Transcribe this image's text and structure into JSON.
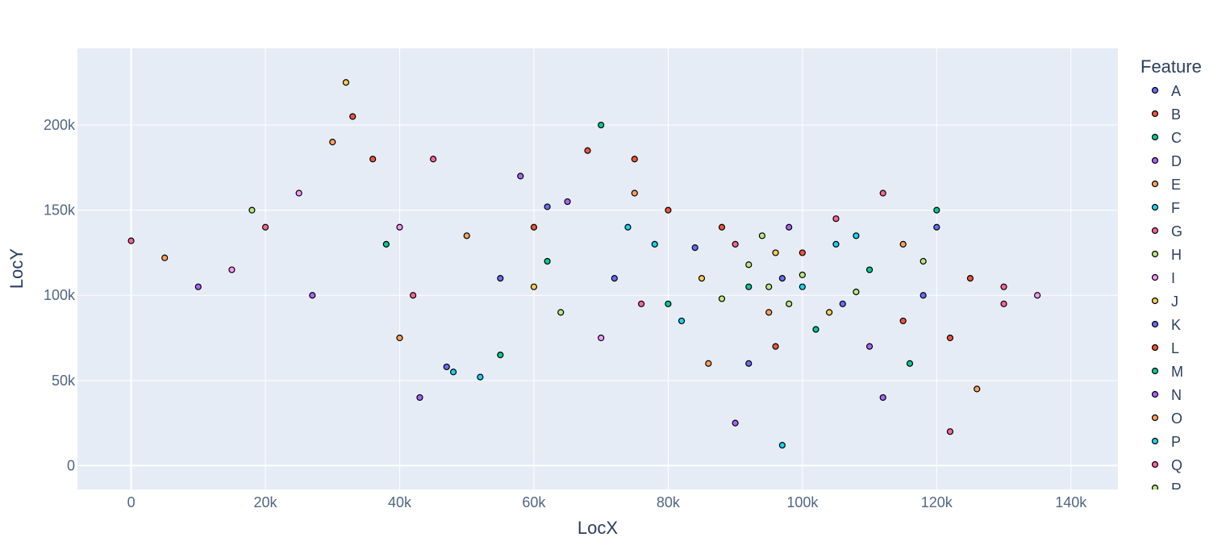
{
  "chart_data": {
    "type": "scatter",
    "title": "",
    "xlabel": "LocX",
    "ylabel": "LocY",
    "xlim": [
      -8000,
      147000
    ],
    "ylim": [
      -14000,
      245000
    ],
    "x_ticks": [
      0,
      20000,
      40000,
      60000,
      80000,
      100000,
      120000,
      140000
    ],
    "x_tick_labels": [
      "0",
      "20k",
      "40k",
      "60k",
      "80k",
      "100k",
      "120k",
      "140k"
    ],
    "y_ticks": [
      0,
      50000,
      100000,
      150000,
      200000
    ],
    "y_tick_labels": [
      "0",
      "50k",
      "100k",
      "150k",
      "200k"
    ],
    "grid": true,
    "legend": {
      "title": "Feature",
      "placement": "right",
      "entries": [
        "A",
        "B",
        "C",
        "D",
        "E",
        "F",
        "G",
        "H",
        "I",
        "J",
        "K",
        "L",
        "M",
        "N",
        "O",
        "P",
        "Q",
        "R"
      ]
    },
    "series": [
      {
        "name": "A",
        "color": "#636efa",
        "points": [
          [
            97000,
            110000
          ],
          [
            84000,
            128000
          ],
          [
            62000,
            152000
          ],
          [
            106000,
            95000
          ],
          [
            47000,
            58000
          ],
          [
            120000,
            140000
          ]
        ]
      },
      {
        "name": "B",
        "color": "#ef553b",
        "points": [
          [
            33000,
            205000
          ],
          [
            75000,
            180000
          ],
          [
            100000,
            125000
          ],
          [
            88000,
            140000
          ],
          [
            115000,
            85000
          ],
          [
            125000,
            110000
          ],
          [
            60000,
            140000
          ]
        ]
      },
      {
        "name": "C",
        "color": "#00cc96",
        "points": [
          [
            70000,
            200000
          ],
          [
            92000,
            105000
          ],
          [
            110000,
            115000
          ],
          [
            55000,
            65000
          ],
          [
            120000,
            150000
          ],
          [
            80000,
            95000
          ]
        ]
      },
      {
        "name": "D",
        "color": "#ab63fa",
        "points": [
          [
            10000,
            105000
          ],
          [
            43000,
            40000
          ],
          [
            98000,
            140000
          ],
          [
            65000,
            155000
          ],
          [
            110000,
            70000
          ]
        ]
      },
      {
        "name": "E",
        "color": "#ffa15a",
        "points": [
          [
            30000,
            190000
          ],
          [
            40000,
            75000
          ],
          [
            75000,
            160000
          ],
          [
            95000,
            90000
          ],
          [
            115000,
            130000
          ]
        ]
      },
      {
        "name": "F",
        "color": "#19d3f3",
        "points": [
          [
            48000,
            55000
          ],
          [
            78000,
            130000
          ],
          [
            100000,
            105000
          ],
          [
            82000,
            85000
          ],
          [
            105000,
            130000
          ]
        ]
      },
      {
        "name": "G",
        "color": "#ff6692",
        "points": [
          [
            20000,
            140000
          ],
          [
            45000,
            180000
          ],
          [
            90000,
            130000
          ],
          [
            105000,
            145000
          ],
          [
            112000,
            160000
          ],
          [
            130000,
            95000
          ]
        ]
      },
      {
        "name": "H",
        "color": "#b6e880",
        "points": [
          [
            95000,
            105000
          ],
          [
            100000,
            112000
          ],
          [
            88000,
            98000
          ],
          [
            108000,
            102000
          ],
          [
            92000,
            118000
          ],
          [
            98000,
            95000
          ]
        ]
      },
      {
        "name": "I",
        "color": "#ff97ff",
        "points": [
          [
            15000,
            115000
          ],
          [
            25000,
            160000
          ],
          [
            40000,
            140000
          ],
          [
            70000,
            75000
          ],
          [
            135000,
            100000
          ]
        ]
      },
      {
        "name": "J",
        "color": "#fecb52",
        "points": [
          [
            32000,
            225000
          ],
          [
            60000,
            105000
          ],
          [
            85000,
            110000
          ],
          [
            96000,
            125000
          ],
          [
            104000,
            90000
          ]
        ]
      },
      {
        "name": "K",
        "color": "#636efa",
        "points": [
          [
            55000,
            110000
          ],
          [
            92000,
            60000
          ],
          [
            118000,
            100000
          ],
          [
            72000,
            110000
          ]
        ]
      },
      {
        "name": "L",
        "color": "#ef553b",
        "points": [
          [
            36000,
            180000
          ],
          [
            68000,
            185000
          ],
          [
            96000,
            70000
          ],
          [
            122000,
            75000
          ],
          [
            80000,
            150000
          ]
        ]
      },
      {
        "name": "M",
        "color": "#00cc96",
        "points": [
          [
            38000,
            130000
          ],
          [
            62000,
            120000
          ],
          [
            102000,
            80000
          ],
          [
            116000,
            60000
          ]
        ]
      },
      {
        "name": "N",
        "color": "#ab63fa",
        "points": [
          [
            27000,
            100000
          ],
          [
            58000,
            170000
          ],
          [
            90000,
            25000
          ],
          [
            112000,
            40000
          ]
        ]
      },
      {
        "name": "O",
        "color": "#ffa15a",
        "points": [
          [
            5000,
            122000
          ],
          [
            50000,
            135000
          ],
          [
            86000,
            60000
          ],
          [
            126000,
            45000
          ]
        ]
      },
      {
        "name": "P",
        "color": "#19d3f3",
        "points": [
          [
            52000,
            52000
          ],
          [
            74000,
            140000
          ],
          [
            97000,
            12000
          ],
          [
            108000,
            135000
          ]
        ]
      },
      {
        "name": "Q",
        "color": "#ff6692",
        "points": [
          [
            0,
            132000
          ],
          [
            42000,
            100000
          ],
          [
            76000,
            95000
          ],
          [
            122000,
            20000
          ],
          [
            130000,
            105000
          ]
        ]
      },
      {
        "name": "R",
        "color": "#b6e880",
        "points": [
          [
            18000,
            150000
          ],
          [
            64000,
            90000
          ],
          [
            94000,
            135000
          ],
          [
            118000,
            120000
          ]
        ]
      }
    ]
  }
}
